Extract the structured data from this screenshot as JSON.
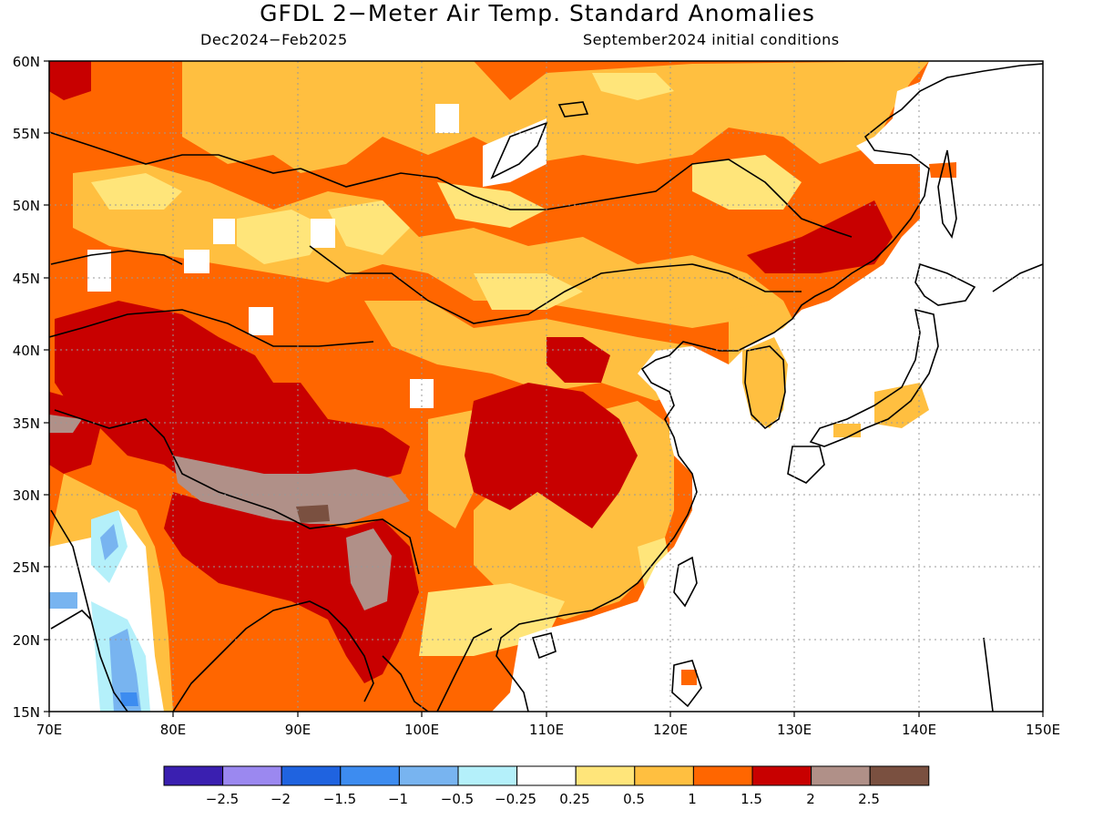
{
  "title": "GFDL 2−Meter Air Temp. Standard Anomalies",
  "period": "Dec2024−Feb2025",
  "initial_conditions": "September2024 initial conditions",
  "map": {
    "lon_range": [
      70,
      150
    ],
    "lat_range": [
      15,
      60
    ],
    "lon_ticks": [
      "70E",
      "80E",
      "90E",
      "100E",
      "110E",
      "120E",
      "130E",
      "140E",
      "150E"
    ],
    "lat_ticks": [
      "60N",
      "55N",
      "50N",
      "45N",
      "40N",
      "35N",
      "30N",
      "25N",
      "20N",
      "15N"
    ],
    "grid": true,
    "ocean_masked": true
  },
  "colorbar": {
    "colors": [
      "#3a1fb0",
      "#9b88f0",
      "#1f63e0",
      "#3d8cf0",
      "#78b4f0",
      "#b4f0fa",
      "#ffffff",
      "#ffe57a",
      "#ffbf40",
      "#ff6600",
      "#c80000",
      "#b09088",
      "#7a5040"
    ],
    "labels": [
      "−2.5",
      "−2",
      "−1.5",
      "−1",
      "−0.5",
      "−0.25",
      "0.25",
      "0.5",
      "1",
      "1.5",
      "2",
      "2.5"
    ]
  }
}
